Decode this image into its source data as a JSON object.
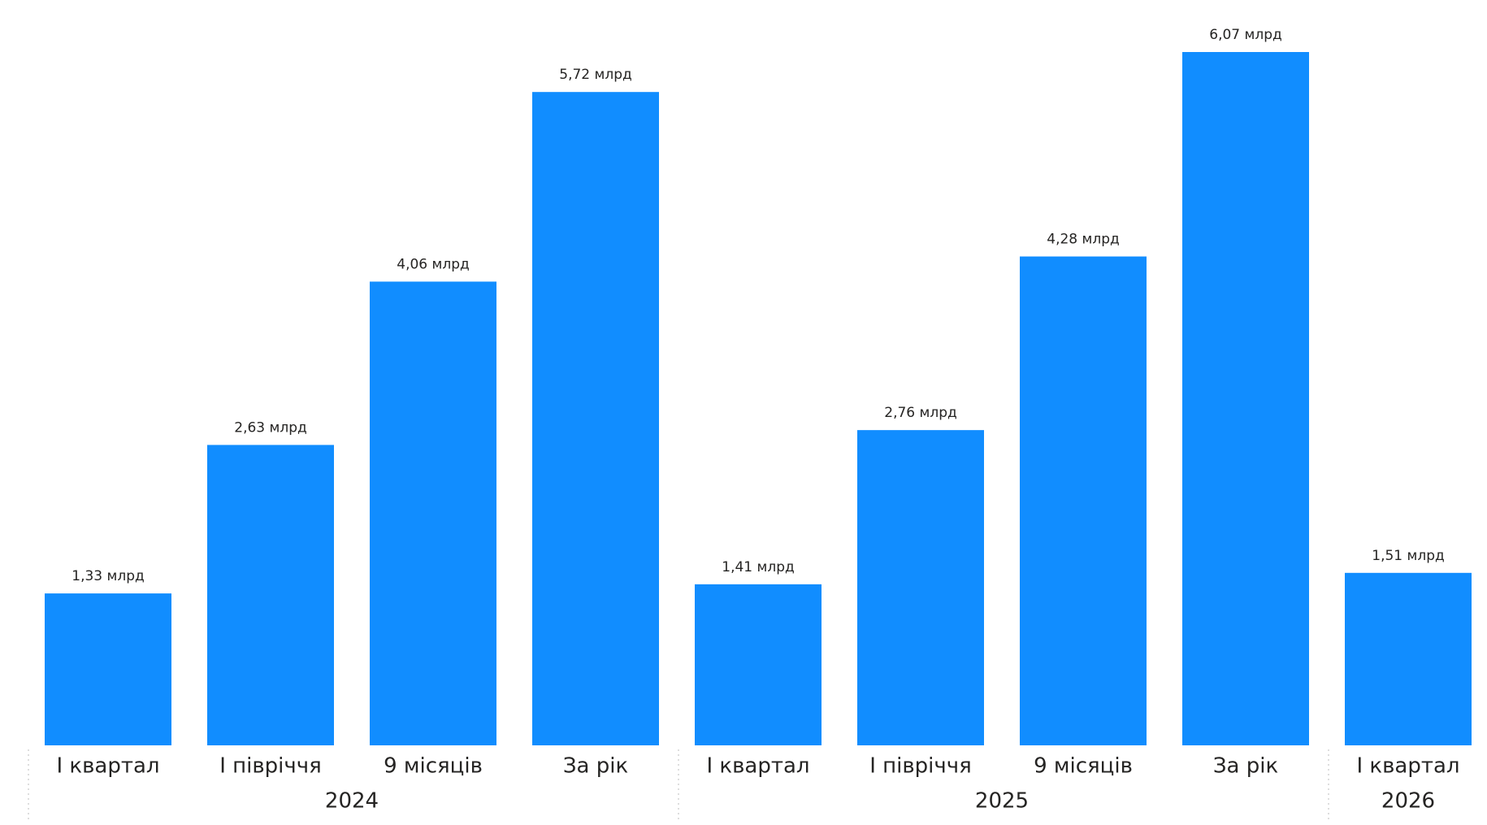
{
  "chart_data": {
    "type": "bar",
    "color": "#118DFF",
    "groups": [
      {
        "name": "2024",
        "categories": [
          "I квартал",
          "I півріччя",
          "9 місяців",
          "За рік"
        ],
        "values": [
          1.33,
          2.63,
          4.06,
          5.72
        ],
        "value_labels": [
          "1,33 млрд",
          "2,63 млрд",
          "4,06 млрд",
          "5,72 млрд"
        ]
      },
      {
        "name": "2025",
        "categories": [
          "I квартал",
          "I півріччя",
          "9 місяців",
          "За рік"
        ],
        "values": [
          1.41,
          2.76,
          4.28,
          6.07
        ],
        "value_labels": [
          "1,41 млрд",
          "2,76 млрд",
          "4,28 млрд",
          "6,07 млрд"
        ]
      },
      {
        "name": "2026",
        "categories": [
          "I квартал"
        ],
        "values": [
          1.51
        ],
        "value_labels": [
          "1,51 млрд"
        ]
      }
    ]
  }
}
